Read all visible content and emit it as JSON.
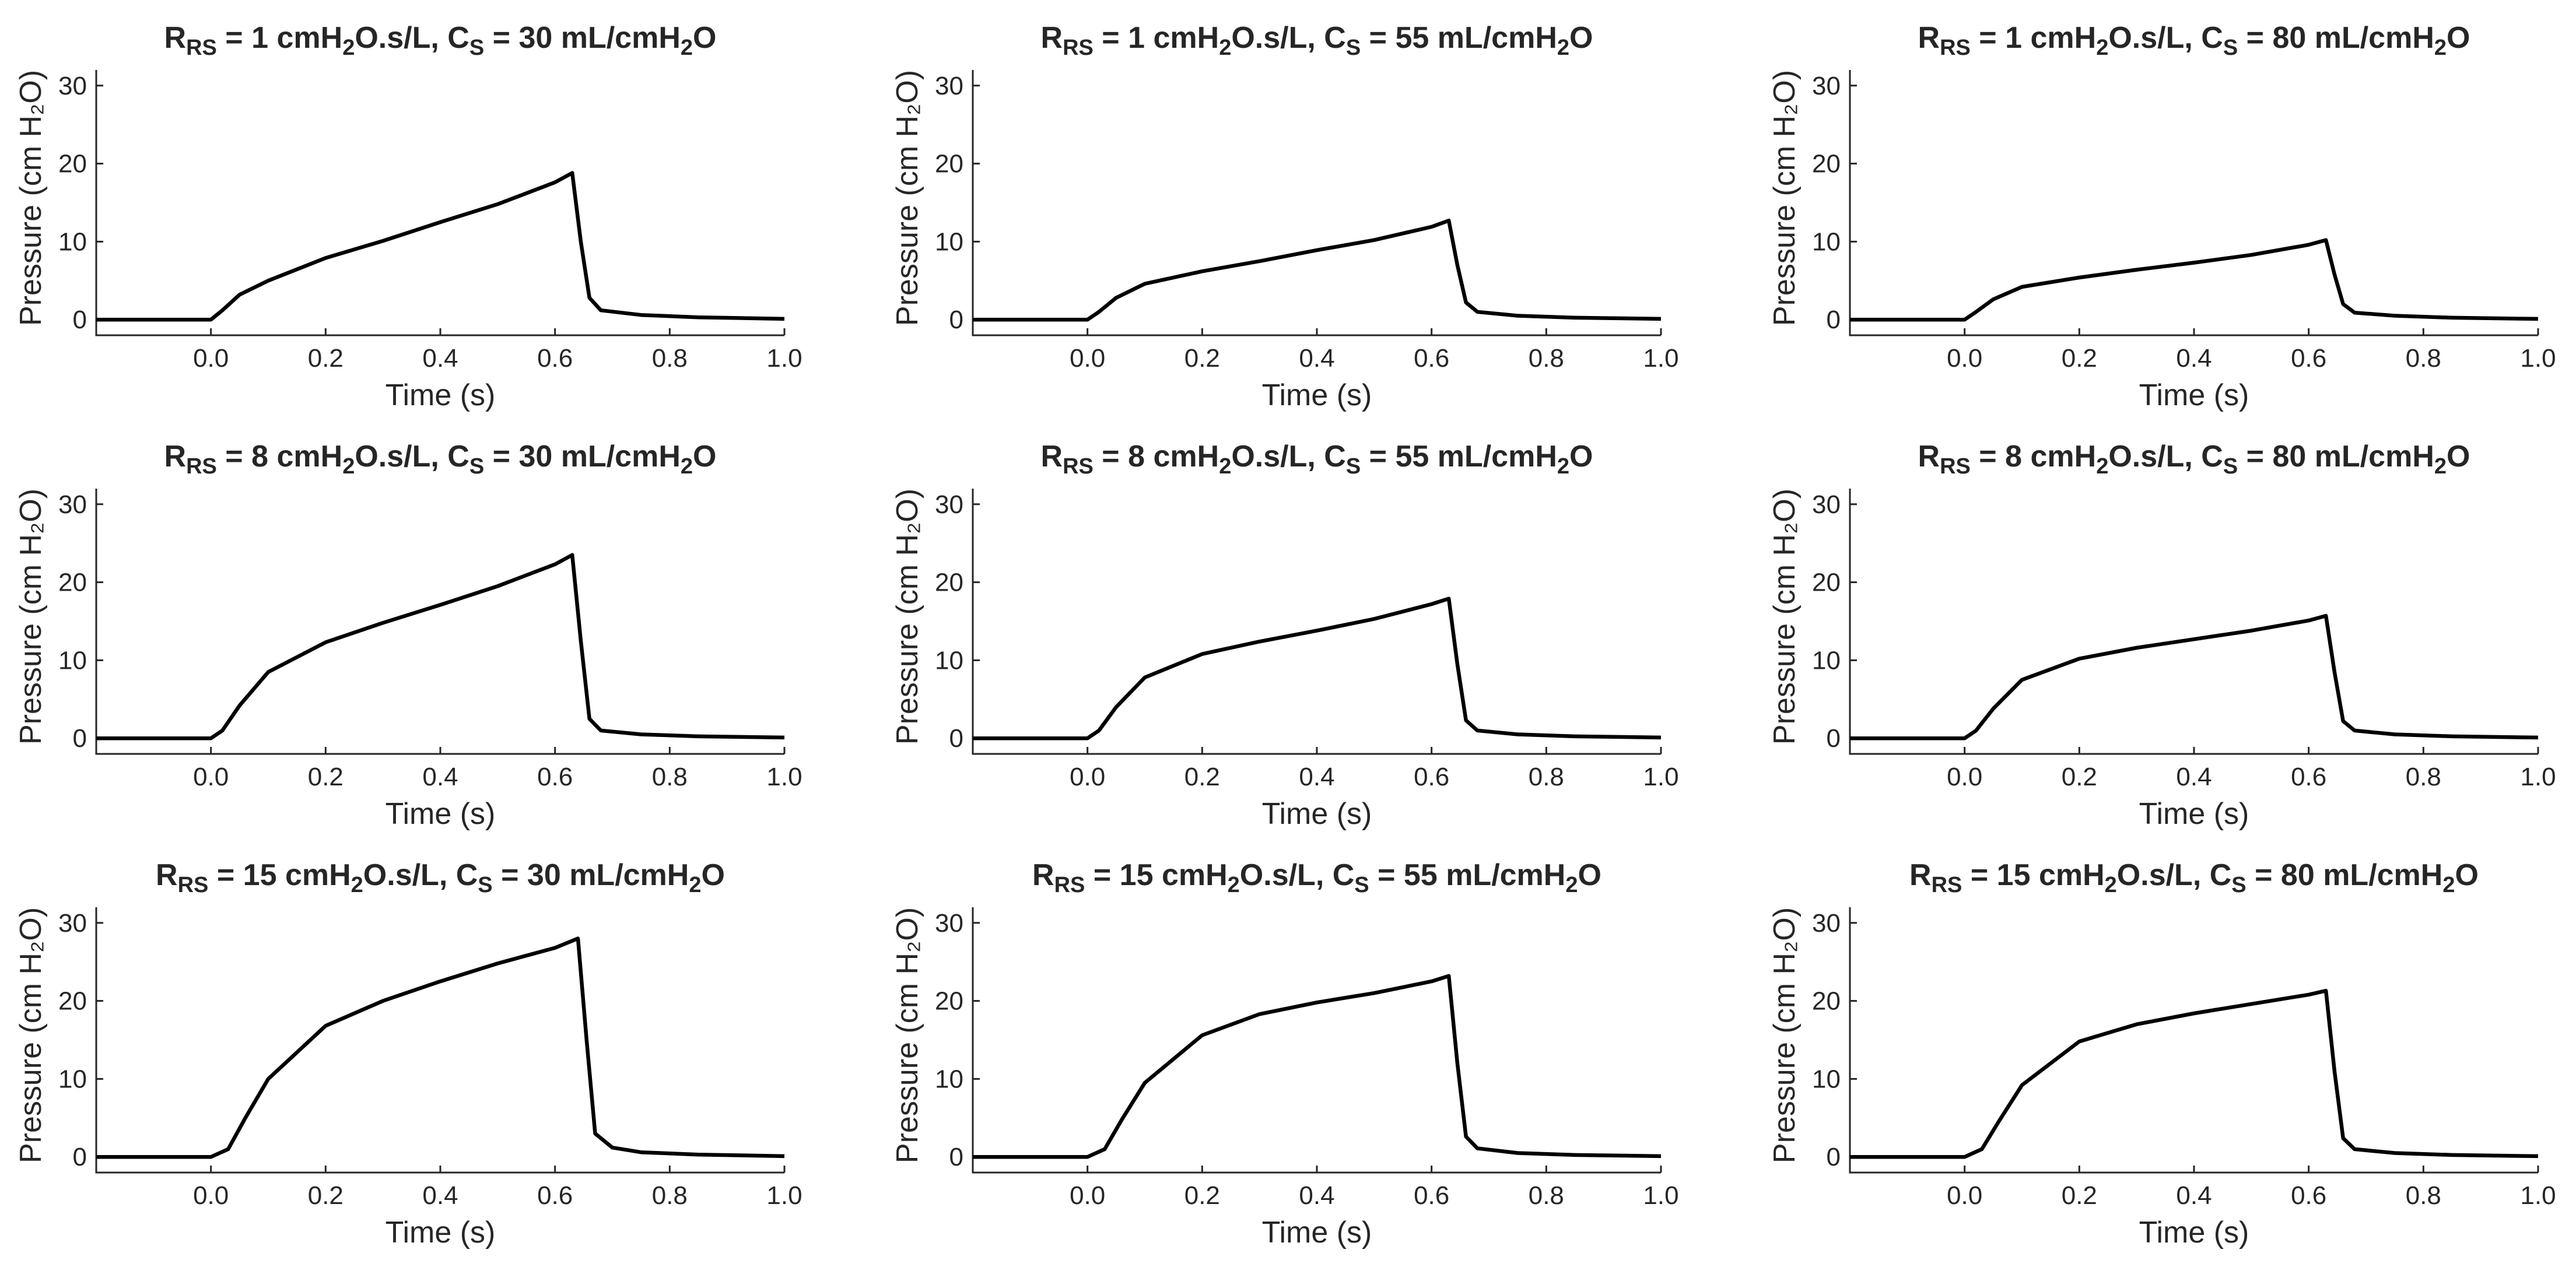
{
  "figure": {
    "x_label": "Time (s)",
    "y_label": "Pressure (cm H₂O)"
  },
  "chart_data": [
    {
      "type": "line",
      "title": "R_RS = 1 cmH2O.s/L, C_S = 30 mL/cmH2O",
      "title_parts": {
        "a": "R",
        "a_sub": "RS",
        "b": " = 1 cmH",
        "b_sub": "2",
        "c": "O.s/L, C",
        "c_sub": "S",
        "d": " = 30 mL/cmH",
        "d_sub": "2",
        "e": "O"
      },
      "xlabel": "Time (s)",
      "ylabel": "Pressure (cm H2O)",
      "xlim": [
        -0.2,
        1.0
      ],
      "ylim": [
        -2,
        32
      ],
      "x_ticks": [
        0.0,
        0.2,
        0.4,
        0.6,
        0.8,
        1.0
      ],
      "y_ticks": [
        0,
        10,
        20,
        30
      ],
      "x_tick_labels": [
        "0.0",
        "0.2",
        "0.4",
        "0.6",
        "0.8",
        "1.0"
      ],
      "y_tick_labels": [
        "0",
        "10",
        "20",
        "30"
      ],
      "series": [
        {
          "x": [
            -0.2,
            0.0,
            0.02,
            0.05,
            0.1,
            0.2,
            0.3,
            0.4,
            0.5,
            0.6,
            0.63,
            0.645,
            0.66,
            0.68,
            0.75,
            0.85,
            1.0
          ],
          "y": [
            0,
            0,
            1.2,
            3.2,
            5.0,
            7.9,
            10.1,
            12.5,
            14.8,
            17.6,
            18.8,
            10.0,
            2.8,
            1.2,
            0.6,
            0.3,
            0.1
          ]
        }
      ]
    },
    {
      "type": "line",
      "title": "R_RS = 1 cmH2O.s/L, C_S = 55 mL/cmH2O",
      "title_parts": {
        "a": "R",
        "a_sub": "RS",
        "b": " = 1 cmH",
        "b_sub": "2",
        "c": "O.s/L, C",
        "c_sub": "S",
        "d": " = 55 mL/cmH",
        "d_sub": "2",
        "e": "O"
      },
      "xlabel": "Time (s)",
      "ylabel": "Pressure (cm H2O)",
      "xlim": [
        -0.2,
        1.0
      ],
      "ylim": [
        -2,
        32
      ],
      "x_ticks": [
        0.0,
        0.2,
        0.4,
        0.6,
        0.8,
        1.0
      ],
      "y_ticks": [
        0,
        10,
        20,
        30
      ],
      "x_tick_labels": [
        "0.0",
        "0.2",
        "0.4",
        "0.6",
        "0.8",
        "1.0"
      ],
      "y_tick_labels": [
        "0",
        "10",
        "20",
        "30"
      ],
      "series": [
        {
          "x": [
            -0.2,
            0.0,
            0.02,
            0.05,
            0.1,
            0.2,
            0.3,
            0.4,
            0.5,
            0.6,
            0.63,
            0.645,
            0.66,
            0.68,
            0.75,
            0.85,
            1.0
          ],
          "y": [
            0,
            0,
            1.0,
            2.8,
            4.6,
            6.2,
            7.5,
            8.9,
            10.2,
            11.9,
            12.7,
            7.0,
            2.2,
            1.0,
            0.5,
            0.25,
            0.1
          ]
        }
      ]
    },
    {
      "type": "line",
      "title": "R_RS = 1 cmH2O.s/L, C_S = 80 mL/cmH2O",
      "title_parts": {
        "a": "R",
        "a_sub": "RS",
        "b": " = 1 cmH",
        "b_sub": "2",
        "c": "O.s/L, C",
        "c_sub": "S",
        "d": " = 80 mL/cmH",
        "d_sub": "2",
        "e": "O"
      },
      "xlabel": "Time (s)",
      "ylabel": "Pressure (cm H2O)",
      "xlim": [
        -0.2,
        1.0
      ],
      "ylim": [
        -2,
        32
      ],
      "x_ticks": [
        0.0,
        0.2,
        0.4,
        0.6,
        0.8,
        1.0
      ],
      "y_ticks": [
        0,
        10,
        20,
        30
      ],
      "x_tick_labels": [
        "0.0",
        "0.2",
        "0.4",
        "0.6",
        "0.8",
        "1.0"
      ],
      "y_tick_labels": [
        "0",
        "10",
        "20",
        "30"
      ],
      "series": [
        {
          "x": [
            -0.2,
            0.0,
            0.02,
            0.05,
            0.1,
            0.2,
            0.3,
            0.4,
            0.5,
            0.6,
            0.63,
            0.645,
            0.66,
            0.68,
            0.75,
            0.85,
            1.0
          ],
          "y": [
            0,
            0,
            1.0,
            2.6,
            4.2,
            5.4,
            6.4,
            7.3,
            8.3,
            9.6,
            10.2,
            5.8,
            2.0,
            0.9,
            0.5,
            0.25,
            0.1
          ]
        }
      ]
    },
    {
      "type": "line",
      "title": "R_RS = 8 cmH2O.s/L, C_S = 30 mL/cmH2O",
      "title_parts": {
        "a": "R",
        "a_sub": "RS",
        "b": " = 8 cmH",
        "b_sub": "2",
        "c": "O.s/L, C",
        "c_sub": "S",
        "d": " = 30 mL/cmH",
        "d_sub": "2",
        "e": "O"
      },
      "xlabel": "Time (s)",
      "ylabel": "Pressure (cm H2O)",
      "xlim": [
        -0.2,
        1.0
      ],
      "ylim": [
        -2,
        32
      ],
      "x_ticks": [
        0.0,
        0.2,
        0.4,
        0.6,
        0.8,
        1.0
      ],
      "y_ticks": [
        0,
        10,
        20,
        30
      ],
      "x_tick_labels": [
        "0.0",
        "0.2",
        "0.4",
        "0.6",
        "0.8",
        "1.0"
      ],
      "y_tick_labels": [
        "0",
        "10",
        "20",
        "30"
      ],
      "series": [
        {
          "x": [
            -0.2,
            0.0,
            0.02,
            0.05,
            0.1,
            0.2,
            0.3,
            0.4,
            0.5,
            0.6,
            0.63,
            0.645,
            0.66,
            0.68,
            0.75,
            0.85,
            1.0
          ],
          "y": [
            0,
            0,
            1.0,
            4.2,
            8.5,
            12.3,
            14.8,
            17.1,
            19.5,
            22.3,
            23.5,
            12.5,
            2.5,
            1.0,
            0.5,
            0.25,
            0.1
          ]
        }
      ]
    },
    {
      "type": "line",
      "title": "R_RS = 8 cmH2O.s/L, C_S = 55 mL/cmH2O",
      "title_parts": {
        "a": "R",
        "a_sub": "RS",
        "b": " = 8 cmH",
        "b_sub": "2",
        "c": "O.s/L, C",
        "c_sub": "S",
        "d": " = 55 mL/cmH",
        "d_sub": "2",
        "e": "O"
      },
      "xlabel": "Time (s)",
      "ylabel": "Pressure (cm H2O)",
      "xlim": [
        -0.2,
        1.0
      ],
      "ylim": [
        -2,
        32
      ],
      "x_ticks": [
        0.0,
        0.2,
        0.4,
        0.6,
        0.8,
        1.0
      ],
      "y_ticks": [
        0,
        10,
        20,
        30
      ],
      "x_tick_labels": [
        "0.0",
        "0.2",
        "0.4",
        "0.6",
        "0.8",
        "1.0"
      ],
      "y_tick_labels": [
        "0",
        "10",
        "20",
        "30"
      ],
      "series": [
        {
          "x": [
            -0.2,
            0.0,
            0.02,
            0.05,
            0.1,
            0.2,
            0.3,
            0.4,
            0.5,
            0.6,
            0.63,
            0.645,
            0.66,
            0.68,
            0.75,
            0.85,
            1.0
          ],
          "y": [
            0,
            0,
            1.0,
            4.0,
            7.8,
            10.8,
            12.4,
            13.8,
            15.3,
            17.2,
            17.9,
            9.5,
            2.3,
            1.0,
            0.5,
            0.25,
            0.1
          ]
        }
      ]
    },
    {
      "type": "line",
      "title": "R_RS = 8 cmH2O.s/L, C_S = 80 mL/cmH2O",
      "title_parts": {
        "a": "R",
        "a_sub": "RS",
        "b": " = 8 cmH",
        "b_sub": "2",
        "c": "O.s/L, C",
        "c_sub": "S",
        "d": " = 80 mL/cmH",
        "d_sub": "2",
        "e": "O"
      },
      "xlabel": "Time (s)",
      "ylabel": "Pressure (cm H2O)",
      "xlim": [
        -0.2,
        1.0
      ],
      "ylim": [
        -2,
        32
      ],
      "x_ticks": [
        0.0,
        0.2,
        0.4,
        0.6,
        0.8,
        1.0
      ],
      "y_ticks": [
        0,
        10,
        20,
        30
      ],
      "x_tick_labels": [
        "0.0",
        "0.2",
        "0.4",
        "0.6",
        "0.8",
        "1.0"
      ],
      "y_tick_labels": [
        "0",
        "10",
        "20",
        "30"
      ],
      "series": [
        {
          "x": [
            -0.2,
            0.0,
            0.02,
            0.05,
            0.1,
            0.2,
            0.3,
            0.4,
            0.5,
            0.6,
            0.63,
            0.645,
            0.66,
            0.68,
            0.75,
            0.85,
            1.0
          ],
          "y": [
            0,
            0,
            1.0,
            3.8,
            7.5,
            10.2,
            11.6,
            12.7,
            13.8,
            15.1,
            15.7,
            8.5,
            2.2,
            1.0,
            0.5,
            0.25,
            0.1
          ]
        }
      ]
    },
    {
      "type": "line",
      "title": "R_RS = 15 cmH2O.s/L, C_S = 30 mL/cmH2O",
      "title_parts": {
        "a": "R",
        "a_sub": "RS",
        "b": " = 15 cmH",
        "b_sub": "2",
        "c": "O.s/L, C",
        "c_sub": "S",
        "d": " = 30 mL/cmH",
        "d_sub": "2",
        "e": "O"
      },
      "xlabel": "Time (s)",
      "ylabel": "Pressure (cm H2O)",
      "xlim": [
        -0.2,
        1.0
      ],
      "ylim": [
        -2,
        32
      ],
      "x_ticks": [
        0.0,
        0.2,
        0.4,
        0.6,
        0.8,
        1.0
      ],
      "y_ticks": [
        0,
        10,
        20,
        30
      ],
      "x_tick_labels": [
        "0.0",
        "0.2",
        "0.4",
        "0.6",
        "0.8",
        "1.0"
      ],
      "y_tick_labels": [
        "0",
        "10",
        "20",
        "30"
      ],
      "series": [
        {
          "x": [
            -0.2,
            0.0,
            0.03,
            0.06,
            0.1,
            0.2,
            0.3,
            0.4,
            0.5,
            0.6,
            0.64,
            0.655,
            0.67,
            0.7,
            0.75,
            0.85,
            1.0
          ],
          "y": [
            0,
            0,
            1.0,
            5.0,
            10.0,
            16.8,
            20.0,
            22.5,
            24.8,
            26.8,
            28.0,
            15.0,
            3.0,
            1.2,
            0.6,
            0.3,
            0.1
          ]
        }
      ]
    },
    {
      "type": "line",
      "title": "R_RS = 15 cmH2O.s/L, C_S = 55 mL/cmH2O",
      "title_parts": {
        "a": "R",
        "a_sub": "RS",
        "b": " = 15 cmH",
        "b_sub": "2",
        "c": "O.s/L, C",
        "c_sub": "S",
        "d": " = 55 mL/cmH",
        "d_sub": "2",
        "e": "O"
      },
      "xlabel": "Time (s)",
      "ylabel": "Pressure (cm H2O)",
      "xlim": [
        -0.2,
        1.0
      ],
      "ylim": [
        -2,
        32
      ],
      "x_ticks": [
        0.0,
        0.2,
        0.4,
        0.6,
        0.8,
        1.0
      ],
      "y_ticks": [
        0,
        10,
        20,
        30
      ],
      "x_tick_labels": [
        "0.0",
        "0.2",
        "0.4",
        "0.6",
        "0.8",
        "1.0"
      ],
      "y_tick_labels": [
        "0",
        "10",
        "20",
        "30"
      ],
      "series": [
        {
          "x": [
            -0.2,
            0.0,
            0.03,
            0.06,
            0.1,
            0.2,
            0.3,
            0.4,
            0.5,
            0.6,
            0.63,
            0.645,
            0.66,
            0.68,
            0.75,
            0.85,
            1.0
          ],
          "y": [
            0,
            0,
            1.0,
            4.8,
            9.5,
            15.6,
            18.3,
            19.8,
            21.0,
            22.5,
            23.2,
            12.0,
            2.6,
            1.1,
            0.5,
            0.25,
            0.1
          ]
        }
      ]
    },
    {
      "type": "line",
      "title": "R_RS = 15 cmH2O.s/L, C_S = 80 mL/cmH2O",
      "title_parts": {
        "a": "R",
        "a_sub": "RS",
        "b": " = 15 cmH",
        "b_sub": "2",
        "c": "O.s/L, C",
        "c_sub": "S",
        "d": " = 80 mL/cmH",
        "d_sub": "2",
        "e": "O"
      },
      "xlabel": "Time (s)",
      "ylabel": "Pressure (cm H2O)",
      "xlim": [
        -0.2,
        1.0
      ],
      "ylim": [
        -2,
        32
      ],
      "x_ticks": [
        0.0,
        0.2,
        0.4,
        0.6,
        0.8,
        1.0
      ],
      "y_ticks": [
        0,
        10,
        20,
        30
      ],
      "x_tick_labels": [
        "0.0",
        "0.2",
        "0.4",
        "0.6",
        "0.8",
        "1.0"
      ],
      "y_tick_labels": [
        "0",
        "10",
        "20",
        "30"
      ],
      "series": [
        {
          "x": [
            -0.2,
            0.0,
            0.03,
            0.06,
            0.1,
            0.2,
            0.3,
            0.4,
            0.5,
            0.6,
            0.63,
            0.645,
            0.66,
            0.68,
            0.75,
            0.85,
            1.0
          ],
          "y": [
            0,
            0,
            1.0,
            4.6,
            9.2,
            14.8,
            17.0,
            18.4,
            19.6,
            20.8,
            21.3,
            11.0,
            2.4,
            1.0,
            0.5,
            0.25,
            0.1
          ]
        }
      ]
    }
  ]
}
